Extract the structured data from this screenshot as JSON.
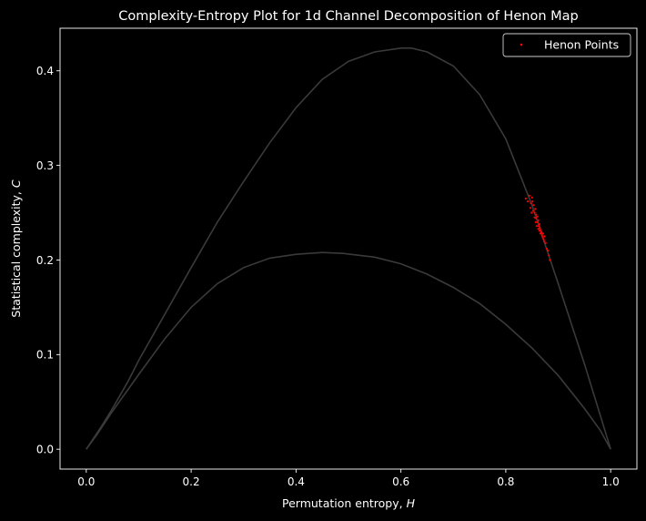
{
  "chart_data": {
    "type": "scatter",
    "title": "Complexity-Entropy Plot for 1d Channel Decomposition of Henon Map",
    "xlabel": "Permutation entropy, ",
    "xlabel_var": "H",
    "ylabel": "Statistical complexity, ",
    "ylabel_var": "C",
    "xlim": [
      -0.05,
      1.05
    ],
    "ylim": [
      -0.021,
      0.445
    ],
    "xticks": [
      0.0,
      0.2,
      0.4,
      0.6,
      0.8,
      1.0
    ],
    "xtick_labels": [
      "0.0",
      "0.2",
      "0.4",
      "0.6",
      "0.8",
      "1.0"
    ],
    "yticks": [
      0.0,
      0.1,
      0.2,
      0.3,
      0.4
    ],
    "ytick_labels": [
      "0.0",
      "0.1",
      "0.2",
      "0.3",
      "0.4"
    ],
    "grid": false,
    "legend": {
      "position": "top-right",
      "entries": [
        "Henon Points"
      ]
    },
    "colors": {
      "background": "#000000",
      "points": "#ff0000",
      "bounds": "#3a3a3a",
      "axes": "#ffffff"
    },
    "boundary_curves": [
      {
        "name": "upper",
        "x": [
          0.0,
          0.03,
          0.05,
          0.08,
          0.1,
          0.15,
          0.2,
          0.25,
          0.3,
          0.35,
          0.4,
          0.45,
          0.5,
          0.55,
          0.6,
          0.62,
          0.65,
          0.7,
          0.75,
          0.8,
          0.85,
          0.9,
          0.95,
          1.0
        ],
        "y": [
          0.0,
          0.025,
          0.043,
          0.072,
          0.094,
          0.143,
          0.192,
          0.24,
          0.283,
          0.324,
          0.361,
          0.391,
          0.41,
          0.42,
          0.424,
          0.424,
          0.42,
          0.405,
          0.375,
          0.328,
          0.258,
          0.175,
          0.09,
          0.0
        ]
      },
      {
        "name": "lower",
        "x": [
          0.0,
          0.02,
          0.05,
          0.1,
          0.15,
          0.2,
          0.25,
          0.3,
          0.35,
          0.4,
          0.45,
          0.49,
          0.55,
          0.6,
          0.65,
          0.7,
          0.75,
          0.8,
          0.85,
          0.9,
          0.95,
          0.98,
          1.0
        ],
        "y": [
          0.0,
          0.015,
          0.04,
          0.079,
          0.117,
          0.15,
          0.175,
          0.192,
          0.202,
          0.206,
          0.208,
          0.207,
          0.203,
          0.196,
          0.185,
          0.171,
          0.154,
          0.132,
          0.107,
          0.078,
          0.043,
          0.02,
          0.0
        ]
      }
    ],
    "series": [
      {
        "name": "Henon Points",
        "x": [
          0.838,
          0.842,
          0.845,
          0.848,
          0.85,
          0.847,
          0.852,
          0.853,
          0.855,
          0.856,
          0.858,
          0.858,
          0.86,
          0.861,
          0.862,
          0.863,
          0.864,
          0.865,
          0.866,
          0.866,
          0.868,
          0.869,
          0.87,
          0.871,
          0.872,
          0.873,
          0.874,
          0.876,
          0.878,
          0.88,
          0.882,
          0.884,
          0.855,
          0.857,
          0.862,
          0.868,
          0.851,
          0.849,
          0.859,
          0.864
        ],
        "y": [
          0.265,
          0.262,
          0.268,
          0.26,
          0.266,
          0.255,
          0.252,
          0.258,
          0.25,
          0.254,
          0.248,
          0.244,
          0.246,
          0.24,
          0.242,
          0.236,
          0.238,
          0.234,
          0.232,
          0.228,
          0.23,
          0.226,
          0.224,
          0.228,
          0.222,
          0.22,
          0.225,
          0.218,
          0.212,
          0.21,
          0.205,
          0.2,
          0.245,
          0.24,
          0.233,
          0.229,
          0.262,
          0.25,
          0.236,
          0.231
        ]
      }
    ]
  }
}
